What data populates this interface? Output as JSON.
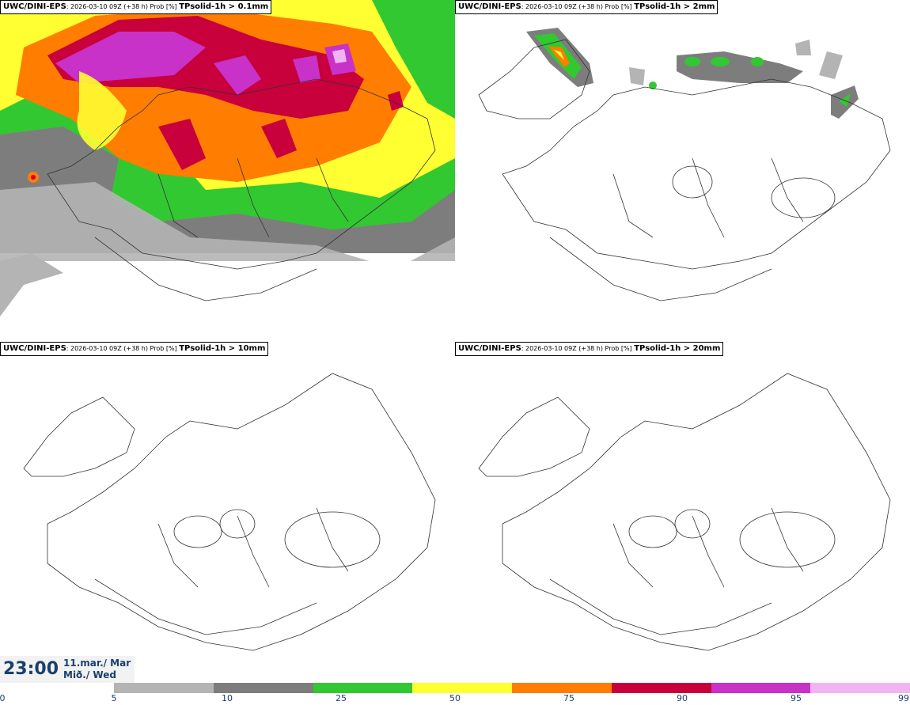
{
  "panels": [
    {
      "model": "UWC/DINI-EPS",
      "run": ": 2026-03-10 09Z (+38 h) Prob [%] ",
      "param": "TPsolid-1h > 0.1mm"
    },
    {
      "model": "UWC/DINI-EPS",
      "run": ": 2026-03-10 09Z (+38 h) Prob [%] ",
      "param": "TPsolid-1h > 2mm"
    },
    {
      "model": "UWC/DINI-EPS",
      "run": ": 2026-03-10 09Z (+38 h) Prob [%] ",
      "param": "TPsolid-1h > 10mm"
    },
    {
      "model": "UWC/DINI-EPS",
      "run": ": 2026-03-10 09Z (+38 h) Prob [%] ",
      "param": "TPsolid-1h > 20mm"
    }
  ],
  "time": {
    "hhmm": "23:00",
    "date": "11.mar./ Mar",
    "weekday": "Mið./ Wed"
  },
  "colorbar": {
    "ticks": [
      "0",
      "5",
      "10",
      "25",
      "50",
      "75",
      "90",
      "95",
      "99"
    ],
    "colors": [
      "#b4b4b4",
      "#7d7d7d",
      "#32c832",
      "#ffff32",
      "#ff7d00",
      "#c8003c",
      "#c832c8",
      "#f0b4f0"
    ]
  }
}
